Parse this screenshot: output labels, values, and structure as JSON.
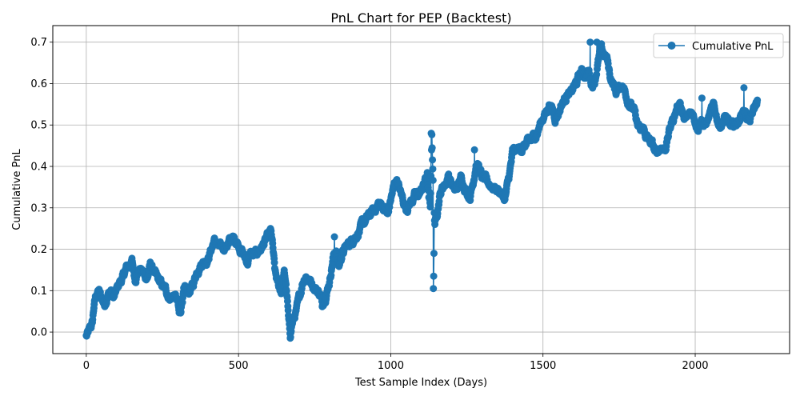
{
  "chart_data": {
    "type": "line",
    "title": "PnL Chart for PEP (Backtest)",
    "xlabel": "Test Sample Index (Days)",
    "ylabel": "Cumulative PnL",
    "xlim": [
      -110,
      2310
    ],
    "ylim": [
      -0.052,
      0.74
    ],
    "xticks": [
      0,
      500,
      1000,
      1500,
      2000
    ],
    "yticks": [
      0.0,
      0.1,
      0.2,
      0.3,
      0.4,
      0.5,
      0.6,
      0.7
    ],
    "grid": true,
    "legend_position": "top-right",
    "marker": "circle",
    "color": "#1f77b4",
    "series": [
      {
        "name": "Cumulative PnL",
        "anchors_x": [
          0,
          10,
          15,
          20,
          25,
          30,
          35,
          40,
          50,
          60,
          70,
          80,
          90,
          100,
          110,
          120,
          130,
          140,
          150,
          160,
          170,
          180,
          190,
          200,
          210,
          220,
          230,
          240,
          250,
          260,
          270,
          280,
          290,
          300,
          305,
          310,
          315,
          320,
          330,
          340,
          350,
          360,
          370,
          380,
          400,
          420,
          440,
          460,
          480,
          495,
          510,
          520,
          530,
          540,
          550,
          560,
          570,
          580,
          590,
          600,
          605,
          610,
          620,
          630,
          640,
          650,
          655,
          660,
          665,
          670,
          675,
          680,
          690,
          700,
          710,
          720,
          730,
          740,
          750,
          760,
          770,
          775,
          780,
          790,
          800,
          810,
          820,
          830,
          840,
          850,
          860,
          870,
          880,
          900,
          920,
          940,
          960,
          980,
          990,
          1000,
          1010,
          1020,
          1030,
          1040,
          1050,
          1060,
          1070,
          1080,
          1090,
          1100,
          1110,
          1120,
          1125,
          1130,
          1135,
          1140,
          1145,
          1150,
          1160,
          1170,
          1180,
          1190,
          1200,
          1210,
          1220,
          1230,
          1240,
          1250,
          1260,
          1270,
          1280,
          1290,
          1300,
          1320,
          1340,
          1360,
          1375,
          1380,
          1390,
          1400,
          1420,
          1440,
          1460,
          1480,
          1490,
          1500,
          1510,
          1520,
          1530,
          1540,
          1550,
          1560,
          1570,
          1580,
          1590,
          1600,
          1610,
          1620,
          1630,
          1640,
          1650,
          1660,
          1670,
          1680,
          1690,
          1700,
          1710,
          1720,
          1730,
          1740,
          1750,
          1760,
          1770,
          1780,
          1790,
          1800,
          1810,
          1820,
          1830,
          1840,
          1850,
          1860,
          1870,
          1880,
          1890,
          1900,
          1910,
          1920,
          1930,
          1940,
          1950,
          1960,
          1970,
          1980,
          1990,
          2000,
          2010,
          2020,
          2030,
          2040,
          2050,
          2060,
          2070,
          2080,
          2090,
          2100,
          2110,
          2120,
          2130,
          2140,
          2150,
          2160,
          2170,
          2180,
          2190,
          2200,
          2205
        ],
        "anchors_y": [
          -0.01,
          0.0,
          0.01,
          0.02,
          0.06,
          0.08,
          0.09,
          0.1,
          0.08,
          0.07,
          0.09,
          0.1,
          0.08,
          0.1,
          0.12,
          0.13,
          0.15,
          0.16,
          0.17,
          0.13,
          0.15,
          0.15,
          0.14,
          0.13,
          0.16,
          0.15,
          0.13,
          0.12,
          0.11,
          0.1,
          0.09,
          0.085,
          0.09,
          0.07,
          0.04,
          0.05,
          0.08,
          0.1,
          0.09,
          0.1,
          0.11,
          0.14,
          0.16,
          0.17,
          0.18,
          0.22,
          0.2,
          0.21,
          0.225,
          0.22,
          0.2,
          0.18,
          0.17,
          0.19,
          0.18,
          0.19,
          0.2,
          0.21,
          0.22,
          0.23,
          0.24,
          0.22,
          0.14,
          0.11,
          0.1,
          0.14,
          0.12,
          0.08,
          0.02,
          -0.01,
          0.02,
          0.03,
          0.05,
          0.08,
          0.12,
          0.14,
          0.13,
          0.12,
          0.11,
          0.1,
          0.09,
          0.06,
          0.08,
          0.1,
          0.13,
          0.18,
          0.2,
          0.16,
          0.19,
          0.2,
          0.21,
          0.22,
          0.23,
          0.25,
          0.27,
          0.29,
          0.31,
          0.3,
          0.28,
          0.32,
          0.35,
          0.37,
          0.34,
          0.32,
          0.3,
          0.31,
          0.32,
          0.33,
          0.33,
          0.34,
          0.36,
          0.38,
          0.32,
          0.3,
          0.48,
          0.34,
          0.26,
          0.28,
          0.33,
          0.35,
          0.36,
          0.38,
          0.36,
          0.34,
          0.35,
          0.37,
          0.36,
          0.34,
          0.33,
          0.36,
          0.41,
          0.4,
          0.37,
          0.36,
          0.35,
          0.34,
          0.32,
          0.34,
          0.38,
          0.43,
          0.44,
          0.45,
          0.46,
          0.48,
          0.5,
          0.52,
          0.53,
          0.55,
          0.54,
          0.52,
          0.53,
          0.55,
          0.56,
          0.58,
          0.57,
          0.59,
          0.6,
          0.62,
          0.63,
          0.62,
          0.63,
          0.6,
          0.61,
          0.65,
          0.68,
          0.67,
          0.66,
          0.62,
          0.6,
          0.58,
          0.59,
          0.6,
          0.58,
          0.56,
          0.55,
          0.53,
          0.5,
          0.48,
          0.49,
          0.47,
          0.46,
          0.45,
          0.43,
          0.44,
          0.45,
          0.44,
          0.47,
          0.5,
          0.52,
          0.54,
          0.56,
          0.52,
          0.51,
          0.52,
          0.53,
          0.51,
          0.5,
          0.52,
          0.5,
          0.51,
          0.53,
          0.54,
          0.52,
          0.5,
          0.51,
          0.52,
          0.5,
          0.49,
          0.5,
          0.51,
          0.52,
          0.54,
          0.52,
          0.51,
          0.53,
          0.55,
          0.56,
          0.57,
          0.55,
          0.54,
          0.53,
          0.52
        ],
        "spikes": [
          {
            "x": 1133,
            "y": 0.48
          },
          {
            "x": 1140,
            "y": 0.105
          },
          {
            "x": 1141,
            "y": 0.135
          },
          {
            "x": 1142,
            "y": 0.19
          },
          {
            "x": 815,
            "y": 0.23
          },
          {
            "x": 1655,
            "y": 0.7
          },
          {
            "x": 1677,
            "y": 0.7
          },
          {
            "x": 2160,
            "y": 0.59
          },
          {
            "x": 2022,
            "y": 0.565
          },
          {
            "x": 1275,
            "y": 0.44
          }
        ],
        "n_points": 2205
      }
    ]
  }
}
